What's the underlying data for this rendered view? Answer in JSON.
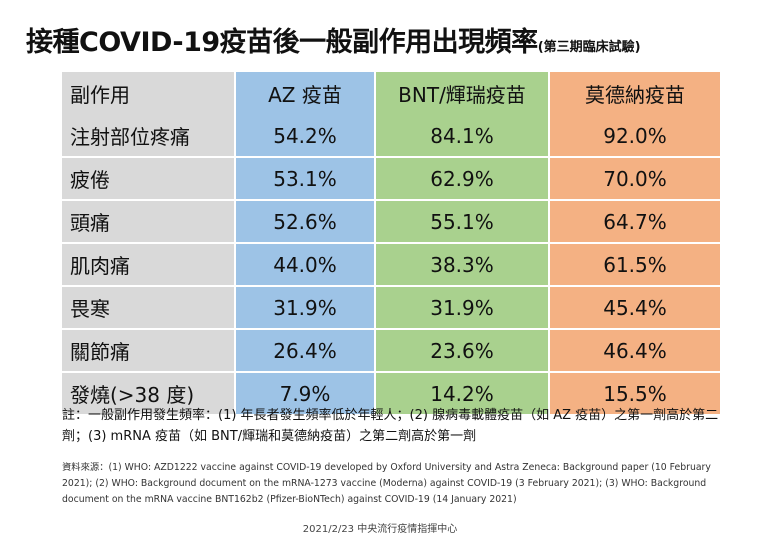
{
  "title": "接種COVID-19疫苗後一般副作用出現頻率",
  "subtitle": "(第三期臨床試驗)",
  "table": {
    "headers": [
      "副作用",
      "AZ 疫苗",
      "BNT/輝瑞疫苗",
      "莫德納疫苗"
    ],
    "rows": [
      [
        "注射部位疼痛",
        "54.2%",
        "84.1%",
        "92.0%"
      ],
      [
        "疲倦",
        "53.1%",
        "62.9%",
        "70.0%"
      ],
      [
        "頭痛",
        "52.6%",
        "55.1%",
        "64.7%"
      ],
      [
        "肌肉痛",
        "44.0%",
        "38.3%",
        "61.5%"
      ],
      [
        "畏寒",
        "31.9%",
        "31.9%",
        "45.4%"
      ],
      [
        "關節痛",
        "26.4%",
        "23.6%",
        "46.4%"
      ],
      [
        "發燒(>38 度)",
        "7.9%",
        "14.2%",
        "15.5%"
      ]
    ]
  },
  "column_colors": [
    "#d9d9d9",
    "#9dc3e6",
    "#a9d18e",
    "#f4b183"
  ],
  "note": "註：一般副作用發生頻率：(1) 年長者發生頻率低於年輕人；(2) 腺病毒載體疫苗（如 AZ 疫苗）之第一劑高於第二劑；(3) mRNA 疫苗（如 BNT/輝瑞和莫德納疫苗）之第二劑高於第一劑",
  "source": "資料來源：(1) WHO: AZD1222 vaccine against COVID-19 developed by Oxford University and Astra Zeneca: Background paper (10 February 2021); (2) WHO: Background document on the mRNA-1273 vaccine (Moderna) against COVID-19 (3 February 2021); (3) WHO: Background document on the mRNA vaccine BNT162b2 (Pfizer-BioNTech) against COVID-19 (14 January 2021)",
  "footer": "2021/2/23 中央流行疫情指揮中心"
}
